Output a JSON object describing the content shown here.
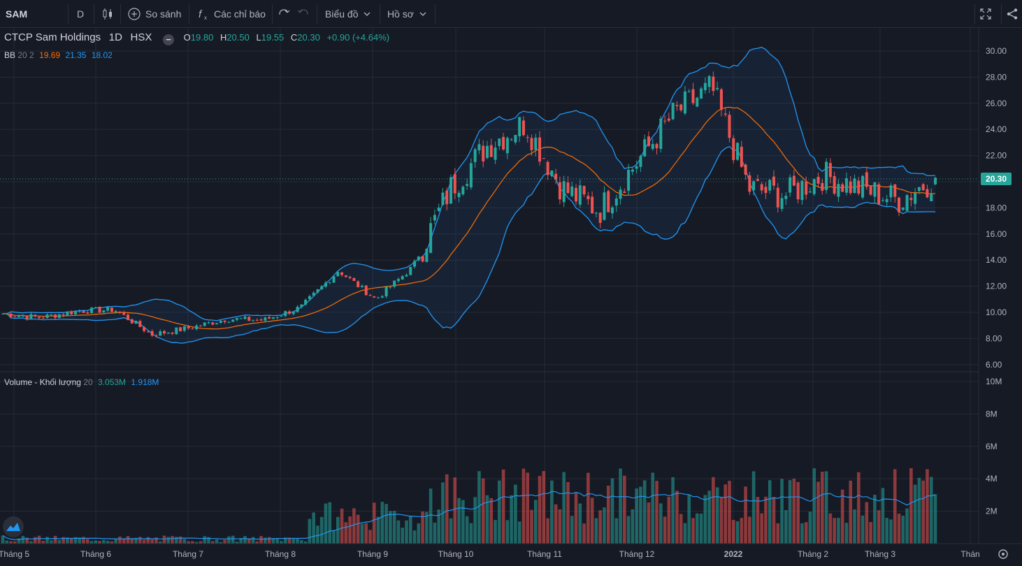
{
  "toolbar": {
    "symbol": "SAM",
    "interval": "D",
    "compare_label": "So sánh",
    "indicators_label": "Các chỉ báo",
    "chart_type_label": "Biểu đồ",
    "profile_label": "Hồ sơ"
  },
  "legend": {
    "title": "CTCP Sam Holdings",
    "interval": "1D",
    "exchange": "HSX",
    "o_label": "O",
    "o_value": "19.80",
    "h_label": "H",
    "h_value": "20.50",
    "l_label": "L",
    "l_value": "19.55",
    "c_label": "C",
    "c_value": "20.30",
    "change": "+0.90 (+4.64%)",
    "bb_name": "BB",
    "bb_params": "20 2",
    "bb_mid": "19.69",
    "bb_upper": "21.35",
    "bb_lower": "18.02"
  },
  "volume_legend": {
    "name": "Volume - Khối lượng",
    "param": "20",
    "value": "3.053M",
    "ma": "1.918M"
  },
  "colors": {
    "background": "#161a25",
    "up": "#26a69a",
    "down": "#ef5350",
    "bb_band": "#2196f3",
    "bb_mid": "#ff6d00",
    "grid": "#262a35"
  },
  "price_axis": {
    "current_label": "20.30",
    "ticks": [
      "30.00",
      "28.00",
      "26.00",
      "24.00",
      "22.00",
      "20.00",
      "18.00",
      "16.00",
      "14.00",
      "12.00",
      "10.00",
      "8.00",
      "6.00"
    ]
  },
  "volume_axis": {
    "ticks": [
      "10M",
      "8M",
      "6M",
      "4M",
      "2M"
    ]
  },
  "time_axis": {
    "labels": [
      "Tháng 5",
      "Tháng 6",
      "Tháng 7",
      "Tháng 8",
      "Tháng 9",
      "Tháng 10",
      "Tháng 11",
      "Tháng 12",
      "2022",
      "Tháng 2",
      "Tháng 3",
      "Thán"
    ]
  },
  "chart_data": {
    "type": "candlestick",
    "title": "CTCP Sam Holdings",
    "symbol": "SAM",
    "interval": "1D",
    "price_range": [
      6,
      30
    ],
    "volume_range_millions": [
      0,
      10
    ],
    "last_candle": {
      "open": 19.8,
      "high": 20.5,
      "low": 19.55,
      "close": 20.3,
      "volume_millions": 3.053
    },
    "close_series": [
      {
        "x": "Tháng 5",
        "y": 9.9
      },
      {
        "x": "Tháng 6",
        "y": 9.6
      },
      {
        "x": "Tháng 6",
        "y": 10.1
      },
      {
        "x": "Tháng 7",
        "y": 10.2
      },
      {
        "x": "Tháng 7",
        "y": 8.3
      },
      {
        "x": "Tháng 8",
        "y": 8.8
      },
      {
        "x": "Tháng 8",
        "y": 9.5
      },
      {
        "x": "Tháng 9",
        "y": 9.4
      },
      {
        "x": "Tháng 9",
        "y": 10.4
      },
      {
        "x": "Tháng 10",
        "y": 13.2
      },
      {
        "x": "Tháng 10",
        "y": 11.0
      },
      {
        "x": "Tháng 10",
        "y": 13.5
      },
      {
        "x": "Tháng 11",
        "y": 19.5
      },
      {
        "x": "Tháng 11",
        "y": 22.8
      },
      {
        "x": "Tháng 11",
        "y": 24.5
      },
      {
        "x": "Tháng 12",
        "y": 19.5
      },
      {
        "x": "Tháng 12",
        "y": 17.8
      },
      {
        "x": "Tháng 12",
        "y": 21.5
      },
      {
        "x": "2022",
        "y": 25.2
      },
      {
        "x": "2022",
        "y": 27.2
      },
      {
        "x": "2022",
        "y": 19.5
      },
      {
        "x": "Tháng 2",
        "y": 19.0
      },
      {
        "x": "Tháng 2",
        "y": 20.5
      },
      {
        "x": "Tháng 3",
        "y": 19.5
      },
      {
        "x": "Tháng 3",
        "y": 18.6
      },
      {
        "x": "Tháng 3",
        "y": 20.3
      }
    ],
    "bollinger": {
      "period": 20,
      "stddev": 2,
      "mid": 19.69,
      "upper": 21.35,
      "lower": 18.02
    },
    "volume_ma": {
      "period": 20,
      "last": 1.918
    }
  }
}
